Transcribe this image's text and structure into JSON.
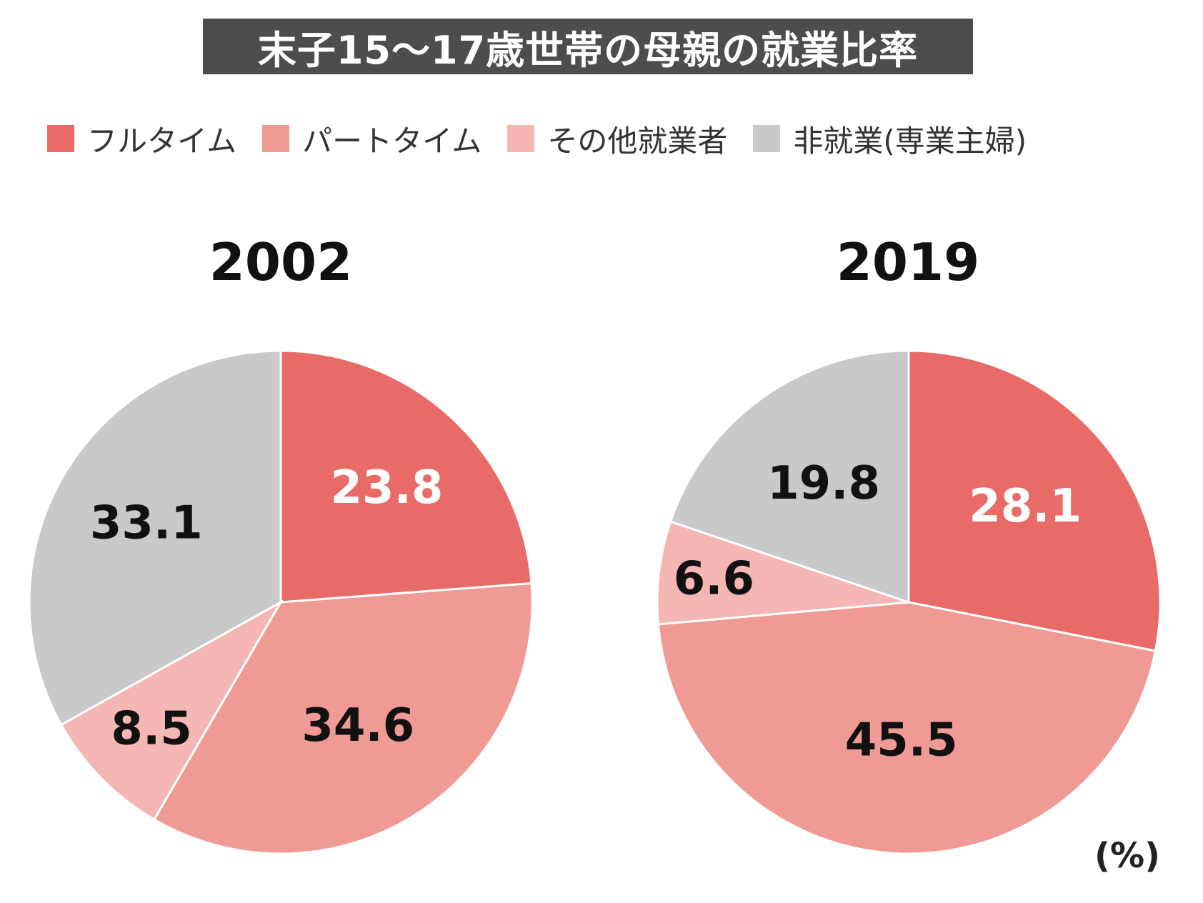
{
  "chart_data": {
    "type": "pie",
    "title": "末子15〜17歳世帯の母親の就業比率",
    "unit": "(%)",
    "legend": [
      {
        "name": "フルタイム",
        "color": "#e96b68"
      },
      {
        "name": "パートタイム",
        "color": "#f09a96"
      },
      {
        "name": "その他就業者",
        "color": "#f5b7b4"
      },
      {
        "name": "非就業(専業主婦)",
        "color": "#c9c9cb"
      }
    ],
    "pies": [
      {
        "year": "2002",
        "categories": [
          "フルタイム",
          "パートタイム",
          "その他就業者",
          "非就業(専業主婦)"
        ],
        "values": [
          23.8,
          34.6,
          8.5,
          33.1
        ],
        "labels": [
          "23.8",
          "34.6",
          "8.5",
          "33.1"
        ]
      },
      {
        "year": "2019",
        "categories": [
          "フルタイム",
          "パートタイム",
          "その他就業者",
          "非就業(専業主婦)"
        ],
        "values": [
          28.1,
          45.5,
          6.6,
          19.8
        ],
        "labels": [
          "28.1",
          "45.5",
          "6.6",
          "19.8"
        ]
      }
    ]
  }
}
